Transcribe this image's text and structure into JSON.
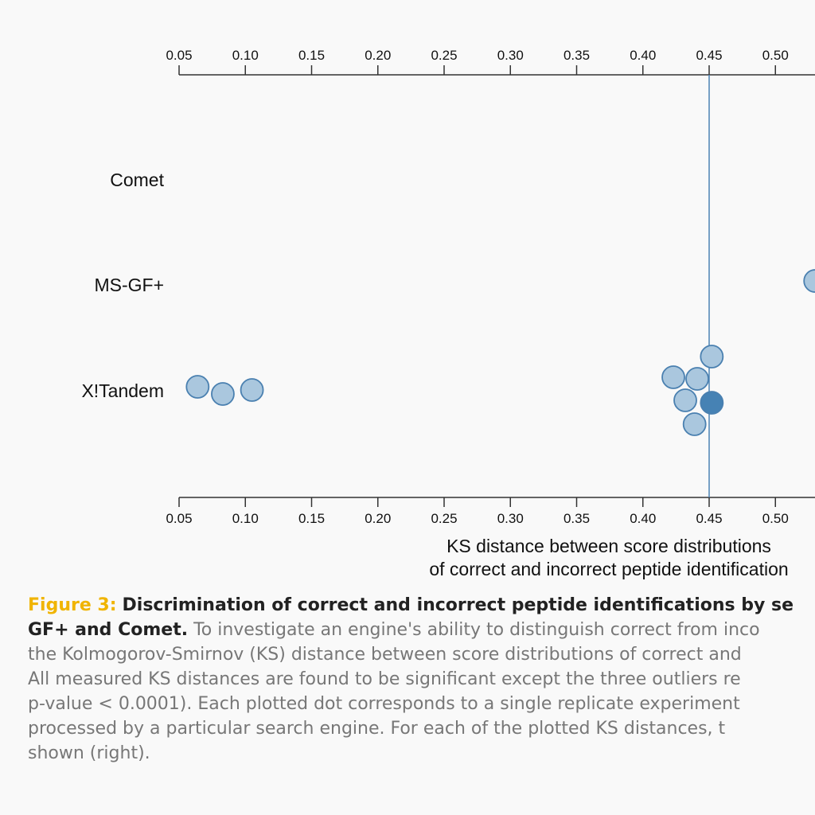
{
  "chart_data": {
    "type": "scatter",
    "ticks": [
      "0.05",
      "0.10",
      "0.15",
      "0.20",
      "0.25",
      "0.30",
      "0.35",
      "0.40",
      "0.45",
      "0.50"
    ],
    "xlim": [
      0.05,
      0.5
    ],
    "categories": [
      "Comet",
      "MS-GF+",
      "X!Tandem"
    ],
    "xlabel_line1": "KS distance between score distributions",
    "xlabel_line2": "of correct and incorrect peptide identification",
    "reference_line_x": 0.45,
    "series": [
      {
        "category": "MS-GF+",
        "values": [
          0.53
        ]
      },
      {
        "category": "X!Tandem",
        "values": [
          0.064,
          0.083,
          0.105,
          0.452,
          0.423,
          0.441,
          0.432,
          0.452,
          0.439
        ],
        "highlighted_index": 7
      }
    ],
    "grid": false,
    "colors": {
      "point_fill": "#aac7de",
      "point_stroke": "#4a80b0",
      "highlight_fill": "#4682b4",
      "ref_line": "#4a82b4",
      "axis": "#333333"
    }
  },
  "caption": {
    "label": "Figure 3:",
    "title_part1": "Discrimination of correct and incorrect peptide identifications by se",
    "title_part2": "GF+ and Comet.",
    "line1_text": "To investigate an engine's ability to distinguish correct from inco",
    "line2": "the Kolmogorov-Smirnov (KS) distance between score distributions of correct and",
    "line3": "All measured KS distances are found to be significant except the three outliers re",
    "line4": "p-value < 0.0001). Each plotted dot corresponds to a single replicate experiment",
    "line5": "processed by a particular search engine. For each of the plotted KS distances, t",
    "line6": "shown (right)."
  }
}
